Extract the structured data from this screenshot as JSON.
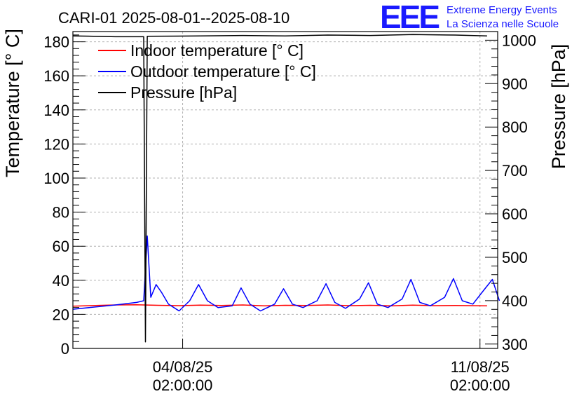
{
  "chart_data": {
    "type": "line",
    "title": "CARI-01 2025-08-01--2025-08-10",
    "ylabel": "Temperature [° C]",
    "y2label": "Pressure [hPa]",
    "xlim": [
      "2025-08-01T12:00:00",
      "2025-08-11T12:00:00"
    ],
    "ylim": [
      0,
      186
    ],
    "y2lim": [
      290,
      1020
    ],
    "grid": true,
    "legend_position": "top-left",
    "x_ticks": [
      {
        "x": "2025-08-04T02:00:00",
        "line1": "04/08/25",
        "line2": "02:00:00"
      },
      {
        "x": "2025-08-11T02:00:00",
        "line1": "11/08/25",
        "line2": "02:00:00"
      }
    ],
    "y_ticks": [
      "0",
      "20",
      "40",
      "60",
      "80",
      "100",
      "120",
      "140",
      "160",
      "180"
    ],
    "y2_ticks": [
      "300",
      "400",
      "500",
      "600",
      "700",
      "800",
      "900",
      "1000"
    ],
    "logo": {
      "mark": "EEE",
      "line1": "Extreme Energy Events",
      "line2": "La Scienza nelle Scuole"
    },
    "series": [
      {
        "name": "Indoor temperature [° C]",
        "axis": "left",
        "color": "#ff0000",
        "points": [
          [
            "2025-08-01T12:00:00",
            24.8
          ],
          [
            "2025-08-02T12:00:00",
            25.5
          ],
          [
            "2025-08-03T00:00:00",
            25.6
          ],
          [
            "2025-08-03T12:00:00",
            25.3
          ],
          [
            "2025-08-04T00:00:00",
            25.1
          ],
          [
            "2025-08-04T12:00:00",
            25.4
          ],
          [
            "2025-08-05T00:00:00",
            25.2
          ],
          [
            "2025-08-05T12:00:00",
            25.5
          ],
          [
            "2025-08-06T00:00:00",
            25.0
          ],
          [
            "2025-08-06T12:00:00",
            25.3
          ],
          [
            "2025-08-07T00:00:00",
            25.2
          ],
          [
            "2025-08-07T12:00:00",
            25.5
          ],
          [
            "2025-08-08T00:00:00",
            25.1
          ],
          [
            "2025-08-08T12:00:00",
            25.3
          ],
          [
            "2025-08-09T00:00:00",
            25.0
          ],
          [
            "2025-08-09T12:00:00",
            25.4
          ],
          [
            "2025-08-10T00:00:00",
            25.1
          ],
          [
            "2025-08-10T12:00:00",
            25.2
          ],
          [
            "2025-08-11T06:00:00",
            25.0
          ]
        ]
      },
      {
        "name": "Outdoor temperature [° C]",
        "axis": "left",
        "color": "#0000ff",
        "points": [
          [
            "2025-08-01T12:00:00",
            23.0
          ],
          [
            "2025-08-02T12:00:00",
            25.5
          ],
          [
            "2025-08-03T00:00:00",
            27.0
          ],
          [
            "2025-08-03T04:00:00",
            28.0
          ],
          [
            "2025-08-03T06:00:00",
            66.0
          ],
          [
            "2025-08-03T08:00:00",
            30.0
          ],
          [
            "2025-08-03T11:00:00",
            37.5
          ],
          [
            "2025-08-03T14:00:00",
            33.0
          ],
          [
            "2025-08-03T18:00:00",
            26.0
          ],
          [
            "2025-08-04T00:00:00",
            22.0
          ],
          [
            "2025-08-04T06:00:00",
            28.0
          ],
          [
            "2025-08-04T11:00:00",
            37.5
          ],
          [
            "2025-08-04T16:00:00",
            28.0
          ],
          [
            "2025-08-04T22:00:00",
            24.0
          ],
          [
            "2025-08-05T06:00:00",
            25.0
          ],
          [
            "2025-08-05T11:00:00",
            35.5
          ],
          [
            "2025-08-05T16:00:00",
            26.0
          ],
          [
            "2025-08-05T22:00:00",
            22.0
          ],
          [
            "2025-08-06T06:00:00",
            26.0
          ],
          [
            "2025-08-06T11:00:00",
            35.0
          ],
          [
            "2025-08-06T16:00:00",
            26.0
          ],
          [
            "2025-08-06T22:00:00",
            24.0
          ],
          [
            "2025-08-07T06:00:00",
            28.0
          ],
          [
            "2025-08-07T11:00:00",
            38.0
          ],
          [
            "2025-08-07T16:00:00",
            27.0
          ],
          [
            "2025-08-07T22:00:00",
            23.5
          ],
          [
            "2025-08-08T06:00:00",
            29.0
          ],
          [
            "2025-08-08T11:00:00",
            38.5
          ],
          [
            "2025-08-08T16:00:00",
            26.0
          ],
          [
            "2025-08-08T22:00:00",
            24.0
          ],
          [
            "2025-08-09T06:00:00",
            29.0
          ],
          [
            "2025-08-09T11:00:00",
            40.5
          ],
          [
            "2025-08-09T16:00:00",
            27.0
          ],
          [
            "2025-08-09T22:00:00",
            25.0
          ],
          [
            "2025-08-10T06:00:00",
            30.0
          ],
          [
            "2025-08-10T11:00:00",
            41.0
          ],
          [
            "2025-08-10T16:00:00",
            28.0
          ],
          [
            "2025-08-10T22:00:00",
            26.0
          ],
          [
            "2025-08-11T04:00:00",
            34.0
          ],
          [
            "2025-08-11T09:00:00",
            40.5
          ],
          [
            "2025-08-11T13:00:00",
            28.0
          ]
        ]
      },
      {
        "name": "Pressure [hPa]",
        "axis": "right",
        "color": "#000000",
        "points": [
          [
            "2025-08-01T12:00:00",
            1010
          ],
          [
            "2025-08-02T12:00:00",
            1008
          ],
          [
            "2025-08-03T04:00:00",
            1008
          ],
          [
            "2025-08-03T05:00:00",
            305
          ],
          [
            "2025-08-03T06:00:00",
            1009
          ],
          [
            "2025-08-04T12:00:00",
            1010
          ],
          [
            "2025-08-05T12:00:00",
            1011
          ],
          [
            "2025-08-06T12:00:00",
            1010
          ],
          [
            "2025-08-07T12:00:00",
            1012
          ],
          [
            "2025-08-08T12:00:00",
            1011
          ],
          [
            "2025-08-09T12:00:00",
            1013
          ],
          [
            "2025-08-10T12:00:00",
            1012
          ],
          [
            "2025-08-11T06:00:00",
            1010
          ]
        ]
      }
    ]
  }
}
